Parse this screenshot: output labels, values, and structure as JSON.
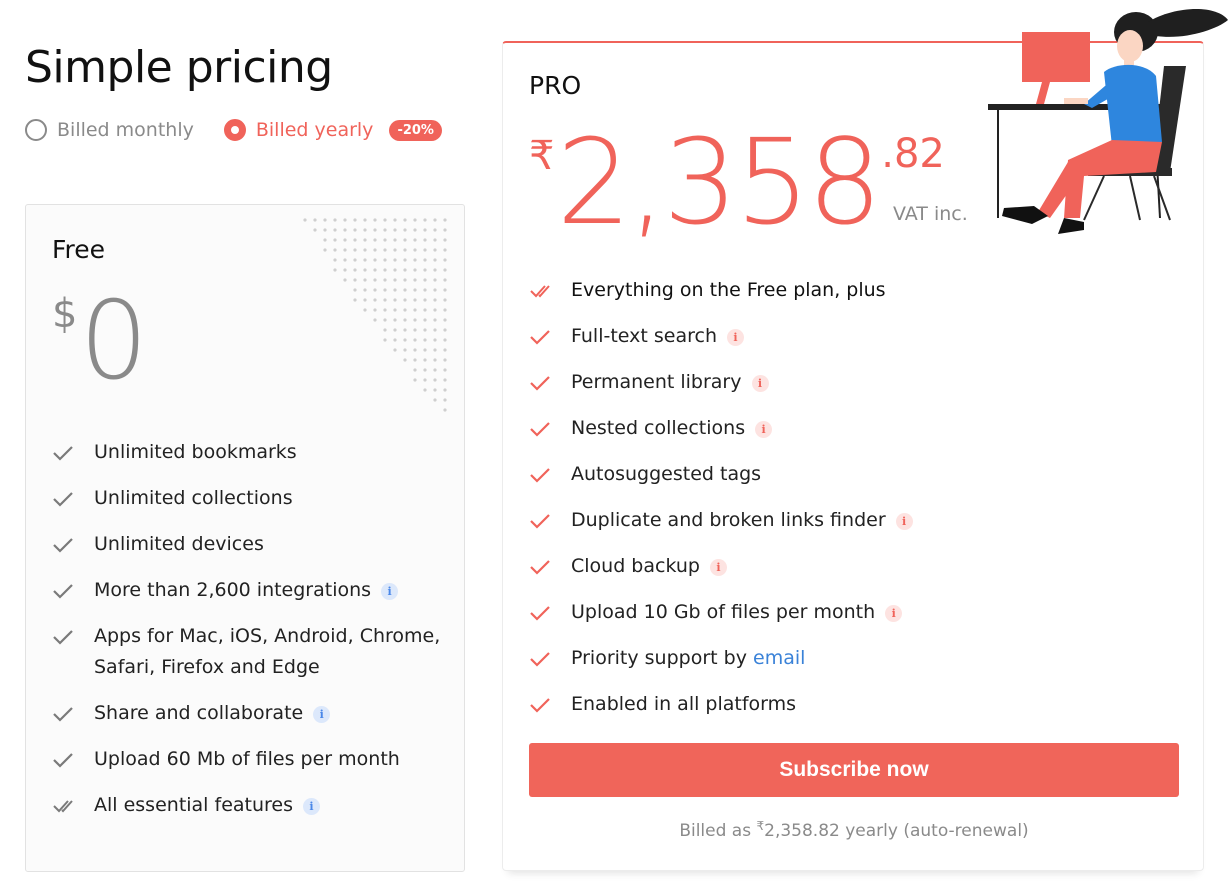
{
  "page": {
    "title": "Simple pricing"
  },
  "billing": {
    "monthly_label": "Billed monthly",
    "yearly_label": "Billed yearly",
    "selected": "yearly",
    "discount_badge": "-20%"
  },
  "free_plan": {
    "name": "Free",
    "currency_symbol": "$",
    "price": "0",
    "features": [
      {
        "text": "Unlimited bookmarks",
        "info": false,
        "icon": "check-icon"
      },
      {
        "text": "Unlimited collections",
        "info": false,
        "icon": "check-icon"
      },
      {
        "text": "Unlimited devices",
        "info": false,
        "icon": "check-icon"
      },
      {
        "text": "More than 2,600 integrations",
        "info": true,
        "icon": "check-icon"
      },
      {
        "text": "Apps for Mac, iOS, Android, Chrome, Safari, Firefox and Edge",
        "info": false,
        "icon": "check-icon"
      },
      {
        "text": "Share and collaborate",
        "info": true,
        "icon": "check-icon"
      },
      {
        "text": "Upload 60 Mb of files per month",
        "info": false,
        "icon": "check-icon"
      },
      {
        "text": "All essential features",
        "info": true,
        "icon": "double-check-icon"
      }
    ]
  },
  "pro_plan": {
    "name": "PRO",
    "currency_symbol": "₹",
    "price_whole": "2,358",
    "price_decimal": ".82",
    "vat_note": "VAT inc.",
    "features": [
      {
        "text": "Everything on the Free plan, plus",
        "info": false,
        "icon": "double-check-icon"
      },
      {
        "text": "Full-text search",
        "info": true,
        "icon": "check-icon"
      },
      {
        "text": "Permanent library",
        "info": true,
        "icon": "check-icon"
      },
      {
        "text": "Nested collections",
        "info": true,
        "icon": "check-icon"
      },
      {
        "text": "Autosuggested tags",
        "info": false,
        "icon": "check-icon"
      },
      {
        "text": "Duplicate and broken links finder",
        "info": true,
        "icon": "check-icon"
      },
      {
        "text": "Cloud backup",
        "info": true,
        "icon": "check-icon"
      },
      {
        "text": "Upload 10 Gb of files per month",
        "info": true,
        "icon": "check-icon"
      },
      {
        "text": "Priority support by",
        "link": "email",
        "info": false,
        "icon": "check-icon"
      },
      {
        "text": "Enabled in all platforms",
        "info": false,
        "icon": "check-icon"
      }
    ],
    "subscribe_label": "Subscribe now",
    "billed_prefix": "Billed as ",
    "billed_currency": "₹",
    "billed_suffix": "2,358.82 yearly (auto-renewal)"
  },
  "icons": {
    "info": "i"
  },
  "colors": {
    "accent": "#f0635a",
    "link": "#3a82d8",
    "muted": "#8a8a8a",
    "info_blue": "#4a87e8"
  }
}
